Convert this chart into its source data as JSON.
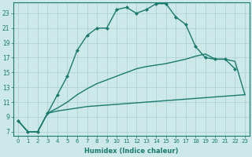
{
  "xlabel": "Humidex (Indice chaleur)",
  "bg_color": "#cce8e8",
  "line_color": "#1a7a6e",
  "grid_color": "#aacfcf",
  "xlim": [
    -0.5,
    23.5
  ],
  "ylim": [
    6.5,
    24.5
  ],
  "yticks": [
    7,
    9,
    11,
    13,
    15,
    17,
    19,
    21,
    23
  ],
  "xticks": [
    0,
    1,
    2,
    3,
    4,
    5,
    6,
    7,
    8,
    9,
    10,
    11,
    12,
    13,
    14,
    15,
    16,
    17,
    18,
    19,
    20,
    21,
    22,
    23
  ],
  "series": [
    {
      "x": [
        0,
        1,
        2,
        3,
        4,
        5,
        6,
        7,
        8,
        9,
        10,
        11,
        12,
        13,
        14,
        15,
        16,
        17,
        18,
        19,
        20,
        21,
        22
      ],
      "y": [
        8.5,
        7.0,
        7.0,
        9.5,
        12.0,
        14.5,
        18.0,
        20.0,
        21.0,
        21.0,
        23.5,
        23.8,
        23.0,
        23.5,
        24.3,
        24.3,
        22.5,
        21.5,
        18.5,
        17.0,
        16.8,
        16.8,
        15.5
      ],
      "marker": "D",
      "markersize": 2.0,
      "linewidth": 1.0
    },
    {
      "x": [
        0,
        1,
        2,
        3,
        4,
        5,
        6,
        7,
        8,
        9,
        10,
        11,
        12,
        13,
        14,
        15,
        16,
        17,
        18,
        19,
        20,
        21,
        22,
        23
      ],
      "y": [
        8.5,
        7.0,
        7.0,
        9.5,
        10.2,
        11.0,
        12.0,
        12.8,
        13.5,
        14.0,
        14.5,
        15.0,
        15.5,
        15.8,
        16.0,
        16.2,
        16.5,
        16.8,
        17.2,
        17.5,
        16.8,
        16.8,
        16.5,
        12.0
      ],
      "marker": null,
      "markersize": 0,
      "linewidth": 1.0
    },
    {
      "x": [
        0,
        1,
        2,
        3,
        4,
        5,
        6,
        7,
        8,
        9,
        10,
        11,
        12,
        13,
        14,
        15,
        16,
        17,
        18,
        19,
        20,
        21,
        22,
        23
      ],
      "y": [
        8.5,
        7.0,
        7.0,
        9.5,
        9.8,
        10.0,
        10.2,
        10.4,
        10.5,
        10.6,
        10.7,
        10.8,
        10.9,
        11.0,
        11.1,
        11.2,
        11.3,
        11.4,
        11.5,
        11.6,
        11.7,
        11.8,
        11.9,
        12.0
      ],
      "marker": null,
      "markersize": 0,
      "linewidth": 1.0
    }
  ]
}
